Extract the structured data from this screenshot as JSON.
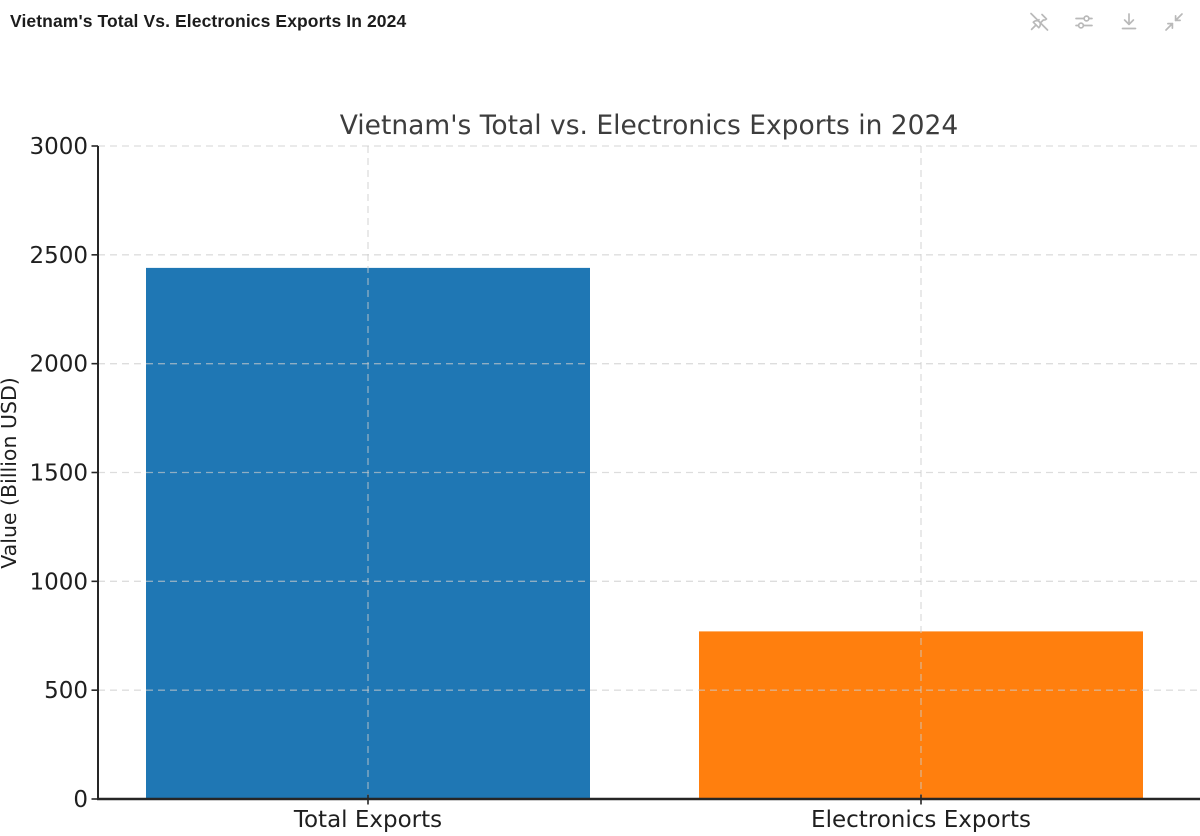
{
  "header": {
    "title": "Vietnam's Total Vs. Electronics Exports In 2024",
    "toolbar": [
      {
        "name": "unpin",
        "icon": "unpin-icon"
      },
      {
        "name": "filters",
        "icon": "sliders-icon"
      },
      {
        "name": "download",
        "icon": "download-icon"
      },
      {
        "name": "collapse",
        "icon": "collapse-icon"
      }
    ]
  },
  "colors": {
    "bar_blue": "#1f77b4",
    "bar_orange": "#ff7f0e",
    "axis": "#262626",
    "tick_text": "#1f1f1f",
    "title_text": "#3d3d3d",
    "grid": "#cccccc",
    "icon_gray": "#b9b9b9"
  },
  "chart_data": {
    "type": "bar",
    "title": "Vietnam's Total vs. Electronics Exports in 2024",
    "categories": [
      "Total Exports",
      "Electronics Exports"
    ],
    "values": [
      2440,
      770
    ],
    "bar_colors": [
      "#1f77b4",
      "#ff7f0e"
    ],
    "xlabel": "",
    "ylabel": "Value (Billion USD)",
    "ylim": [
      0,
      3000
    ],
    "yticks": [
      0,
      500,
      1000,
      1500,
      2000,
      2500,
      3000
    ],
    "grid": "dashed, both axes, drawn above bars",
    "legend": "none"
  }
}
